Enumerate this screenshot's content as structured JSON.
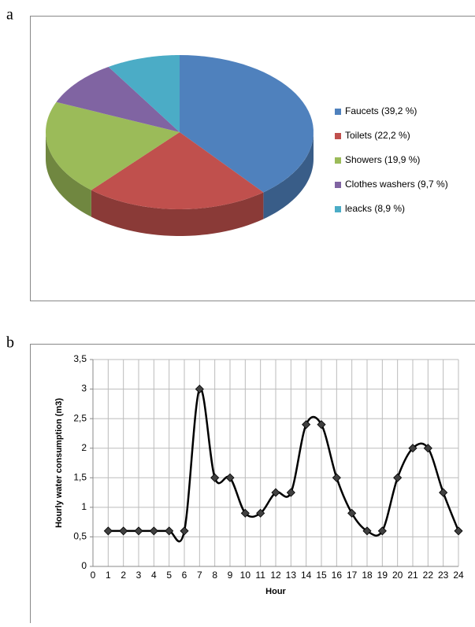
{
  "chart_data": [
    {
      "type": "pie",
      "label": "a",
      "categories": [
        "Faucets (39,2 %)",
        "Toilets (22,2 %)",
        "Showers (19,9 %)",
        "Clothes washers (9,7 %)",
        "leacks (8,9 %)"
      ],
      "values": [
        39.2,
        22.2,
        19.9,
        9.7,
        8.9
      ],
      "colors": [
        "#4f81bd",
        "#c0504d",
        "#9bbb59",
        "#8064a2",
        "#4bacc6"
      ],
      "legend": "right"
    },
    {
      "type": "line",
      "label": "b",
      "x_label": "Hour",
      "y_label": "Hourly water consumption (m3)",
      "x": [
        1,
        2,
        3,
        4,
        5,
        6,
        7,
        8,
        9,
        10,
        11,
        12,
        13,
        14,
        15,
        16,
        17,
        18,
        19,
        20,
        21,
        22,
        23,
        24
      ],
      "values": [
        0.6,
        0.6,
        0.6,
        0.6,
        0.6,
        0.6,
        3,
        1.5,
        1.5,
        0.9,
        0.9,
        1.25,
        1.25,
        2.4,
        2.4,
        1.5,
        0.9,
        0.6,
        0.6,
        1.5,
        2,
        2,
        1.25,
        0.6
      ],
      "color": "#000000",
      "marker_color": "#404040",
      "xlim": [
        0,
        24
      ],
      "xticks": [
        0,
        1,
        2,
        3,
        4,
        5,
        6,
        7,
        8,
        9,
        10,
        11,
        12,
        13,
        14,
        15,
        16,
        17,
        18,
        19,
        20,
        21,
        22,
        23,
        24
      ],
      "ylim": [
        0,
        3.5
      ],
      "yticks": [
        0,
        {
          "value": 0.5,
          "label": "0,5"
        },
        1,
        {
          "value": 1.5,
          "label": "1,5"
        },
        2,
        {
          "value": 2.5,
          "label": "2,5"
        },
        3,
        {
          "value": 3.5,
          "label": "3,5"
        }
      ],
      "grid": true,
      "smooth": true
    }
  ]
}
